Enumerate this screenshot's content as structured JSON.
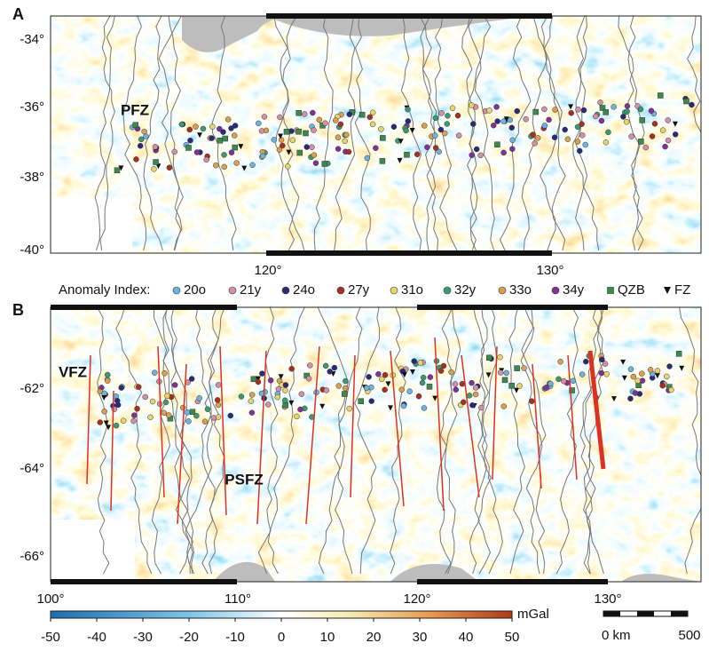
{
  "panels": [
    {
      "label": "A",
      "lat_labels": [
        "-34°",
        "-36°",
        "-38°",
        "-40°"
      ],
      "lon_labels": [
        "120°",
        "130°"
      ],
      "features": [
        "PFZ"
      ]
    },
    {
      "label": "B",
      "lat_labels": [
        "-62°",
        "-64°",
        "-66°"
      ],
      "lon_labels": [
        "100°",
        "110°",
        "120°",
        "130°"
      ],
      "features": [
        "VFZ",
        "PSFZ"
      ]
    }
  ],
  "legend": {
    "title": "Anomaly Index:",
    "items": [
      "20o",
      "21y",
      "24o",
      "27y",
      "31o",
      "32y",
      "33o",
      "34y",
      "QZB",
      "FZ"
    ]
  },
  "colorbar": {
    "ticks": [
      -50,
      -40,
      -30,
      -20,
      -10,
      0,
      10,
      20,
      30,
      40,
      50
    ],
    "unit": "mGal"
  },
  "scale_bar": {
    "start": "0 km",
    "end": 500
  }
}
